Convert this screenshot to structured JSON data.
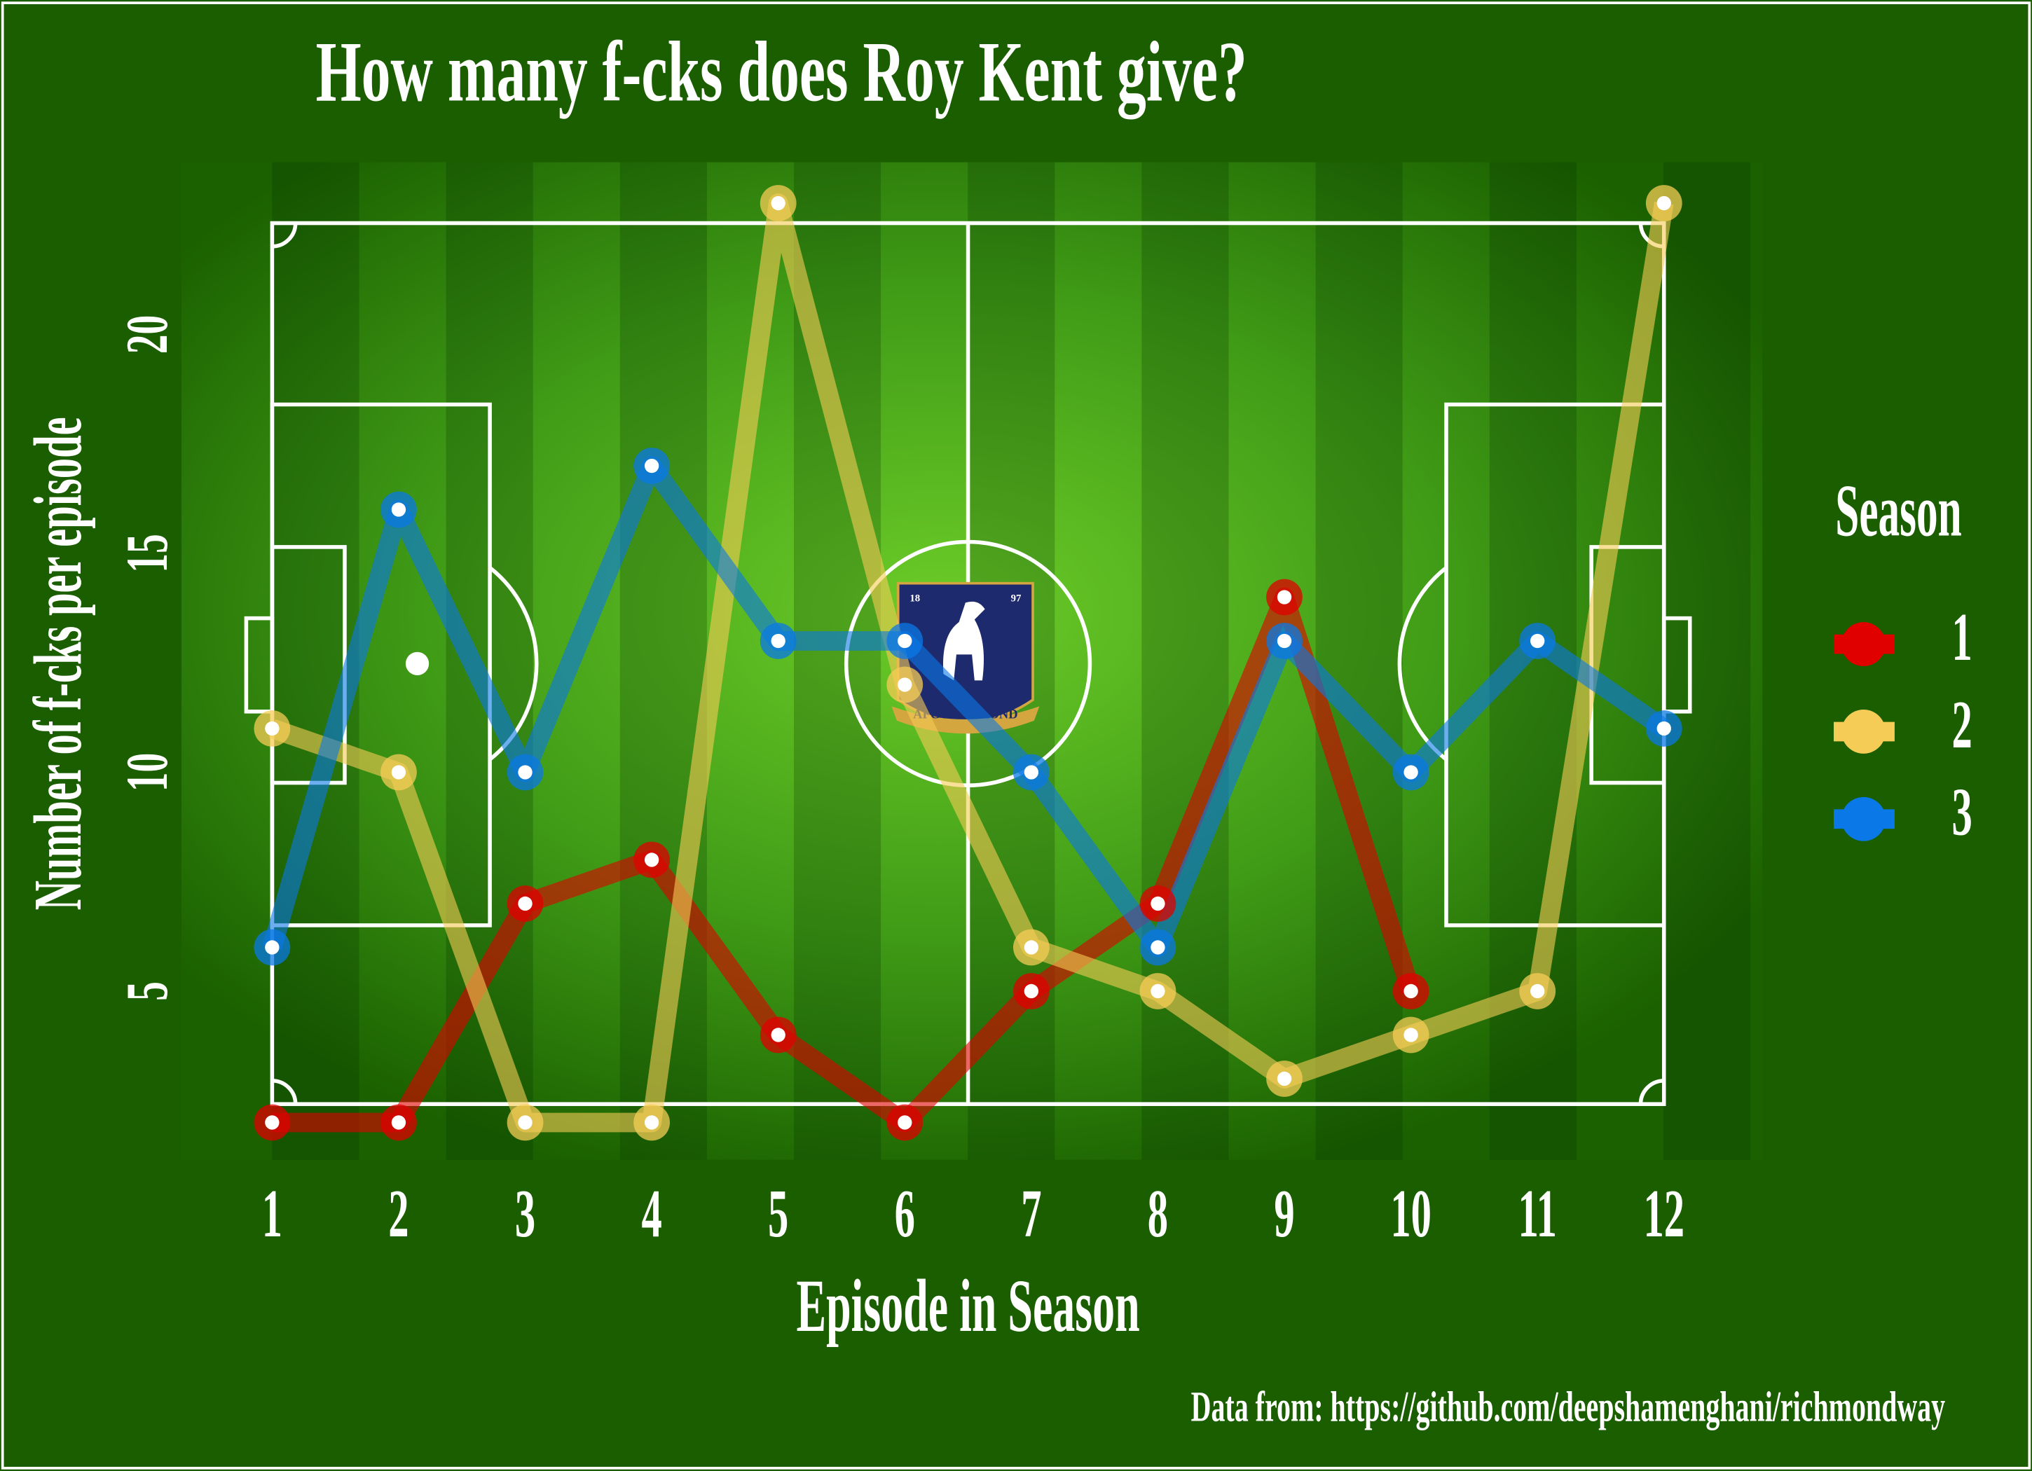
{
  "chart_data": {
    "type": "line",
    "title": "How many f-cks does Roy Kent give?",
    "x_label": "Episode in Season",
    "y_label": "Number of f-cks per episode",
    "x": [
      1,
      2,
      3,
      4,
      5,
      6,
      7,
      8,
      9,
      10,
      11,
      12
    ],
    "xlim": [
      0.4,
      12.6
    ],
    "xticks": [
      1,
      2,
      3,
      4,
      5,
      6,
      7,
      8,
      9,
      10,
      11,
      12
    ],
    "ylim": [
      1,
      24
    ],
    "yticks": [
      5,
      10,
      15,
      20
    ],
    "grid": false,
    "legend_title": "Season",
    "legend": "right",
    "series": [
      {
        "name": "1",
        "color": "#e00000",
        "values": [
          2,
          2,
          7,
          8,
          4,
          2,
          5,
          7,
          14,
          5,
          null,
          null
        ]
      },
      {
        "name": "2",
        "color": "#f5cc55",
        "values": [
          11,
          10,
          2,
          2,
          23,
          12,
          6,
          5,
          3,
          4,
          5,
          23
        ]
      },
      {
        "name": "3",
        "color": "#0a78e6",
        "values": [
          6,
          16,
          10,
          17,
          13,
          13,
          10,
          6,
          13,
          10,
          13,
          11
        ]
      }
    ],
    "caption": "Data from: https://github.com/deepshamenghani/richmondway"
  },
  "logo": {
    "banner": "AFC RICHMOND",
    "years": [
      "18",
      "97"
    ]
  }
}
